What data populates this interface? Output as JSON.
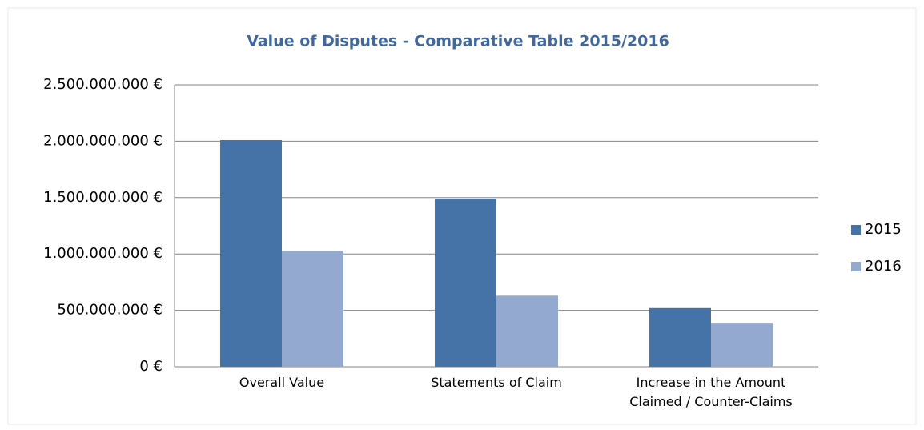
{
  "chart_data": {
    "type": "bar",
    "title": "Value of Disputes - Comparative Table 2015/2016",
    "categories": [
      "Overall Value",
      "Statements of Claim",
      "Increase in the Amount\nClaimed  / Counter-Claims"
    ],
    "series": [
      {
        "name": "2015",
        "color": "#4572a7",
        "values": [
          2010000000,
          1490000000,
          520000000
        ]
      },
      {
        "name": "2016",
        "color": "#93a9d0",
        "values": [
          1030000000,
          630000000,
          390000000
        ]
      }
    ],
    "ylim": [
      0,
      2500000000
    ],
    "yticks": [
      {
        "value": 0,
        "label": "0 €"
      },
      {
        "value": 500000000,
        "label": "500.000.000 €"
      },
      {
        "value": 1000000000,
        "label": "1.000.000.000 €"
      },
      {
        "value": 1500000000,
        "label": "1.500.000.000 €"
      },
      {
        "value": 2000000000,
        "label": "2.000.000.000 €"
      },
      {
        "value": 2500000000,
        "label": "2.500.000.000 €"
      }
    ],
    "grid": true,
    "legend": "right"
  }
}
